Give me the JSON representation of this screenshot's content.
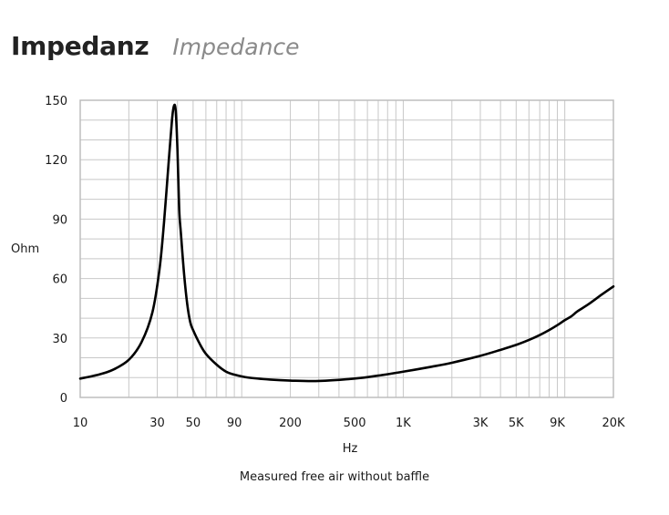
{
  "header": {
    "title": "Impedanz",
    "subtitle": "Impedance"
  },
  "caption": "Measured free air without baffle",
  "chart_data": {
    "type": "line",
    "title": "Impedanz",
    "subtitle": "Impedance",
    "xlabel": "Hz",
    "ylabel": "Ohm",
    "x_scale": "log",
    "xlim": [
      10,
      20000
    ],
    "ylim": [
      0,
      150
    ],
    "grid": true,
    "x_ticks": [
      {
        "value": 10,
        "label": "10"
      },
      {
        "value": 30,
        "label": "30"
      },
      {
        "value": 50,
        "label": "50"
      },
      {
        "value": 90,
        "label": "90"
      },
      {
        "value": 200,
        "label": "200"
      },
      {
        "value": 500,
        "label": "500"
      },
      {
        "value": 1000,
        "label": "1K"
      },
      {
        "value": 3000,
        "label": "3K"
      },
      {
        "value": 5000,
        "label": "5K"
      },
      {
        "value": 9000,
        "label": "9K"
      },
      {
        "value": 20000,
        "label": "20K"
      }
    ],
    "y_ticks": [
      0,
      30,
      60,
      90,
      120,
      150
    ],
    "line_color": "#000000",
    "grid_color": "#c8c8c8",
    "series": [
      {
        "x": [
          10,
          13,
          16,
          20,
          24,
          28,
          31,
          33,
          35,
          37,
          38,
          39,
          40,
          41,
          42,
          44,
          46,
          48,
          50,
          55,
          60,
          70,
          80,
          90,
          110,
          150,
          200,
          300,
          500,
          700,
          1000,
          1500,
          2000,
          3000,
          4000,
          5000,
          6000,
          7000,
          8000,
          9000,
          10000,
          11000,
          12000,
          14000,
          17000,
          20000
        ],
        "y": [
          9.5,
          11.5,
          14,
          19,
          28,
          43,
          65,
          88,
          115,
          140,
          147,
          145,
          125,
          95,
          83,
          62,
          47,
          38,
          34,
          27,
          22,
          16.5,
          13,
          11.5,
          10,
          9,
          8.5,
          8.3,
          9.5,
          11,
          13,
          15.5,
          17.5,
          21,
          24,
          26.5,
          29,
          31.5,
          34,
          36.5,
          39,
          41,
          43.5,
          47,
          52,
          56
        ]
      }
    ]
  }
}
